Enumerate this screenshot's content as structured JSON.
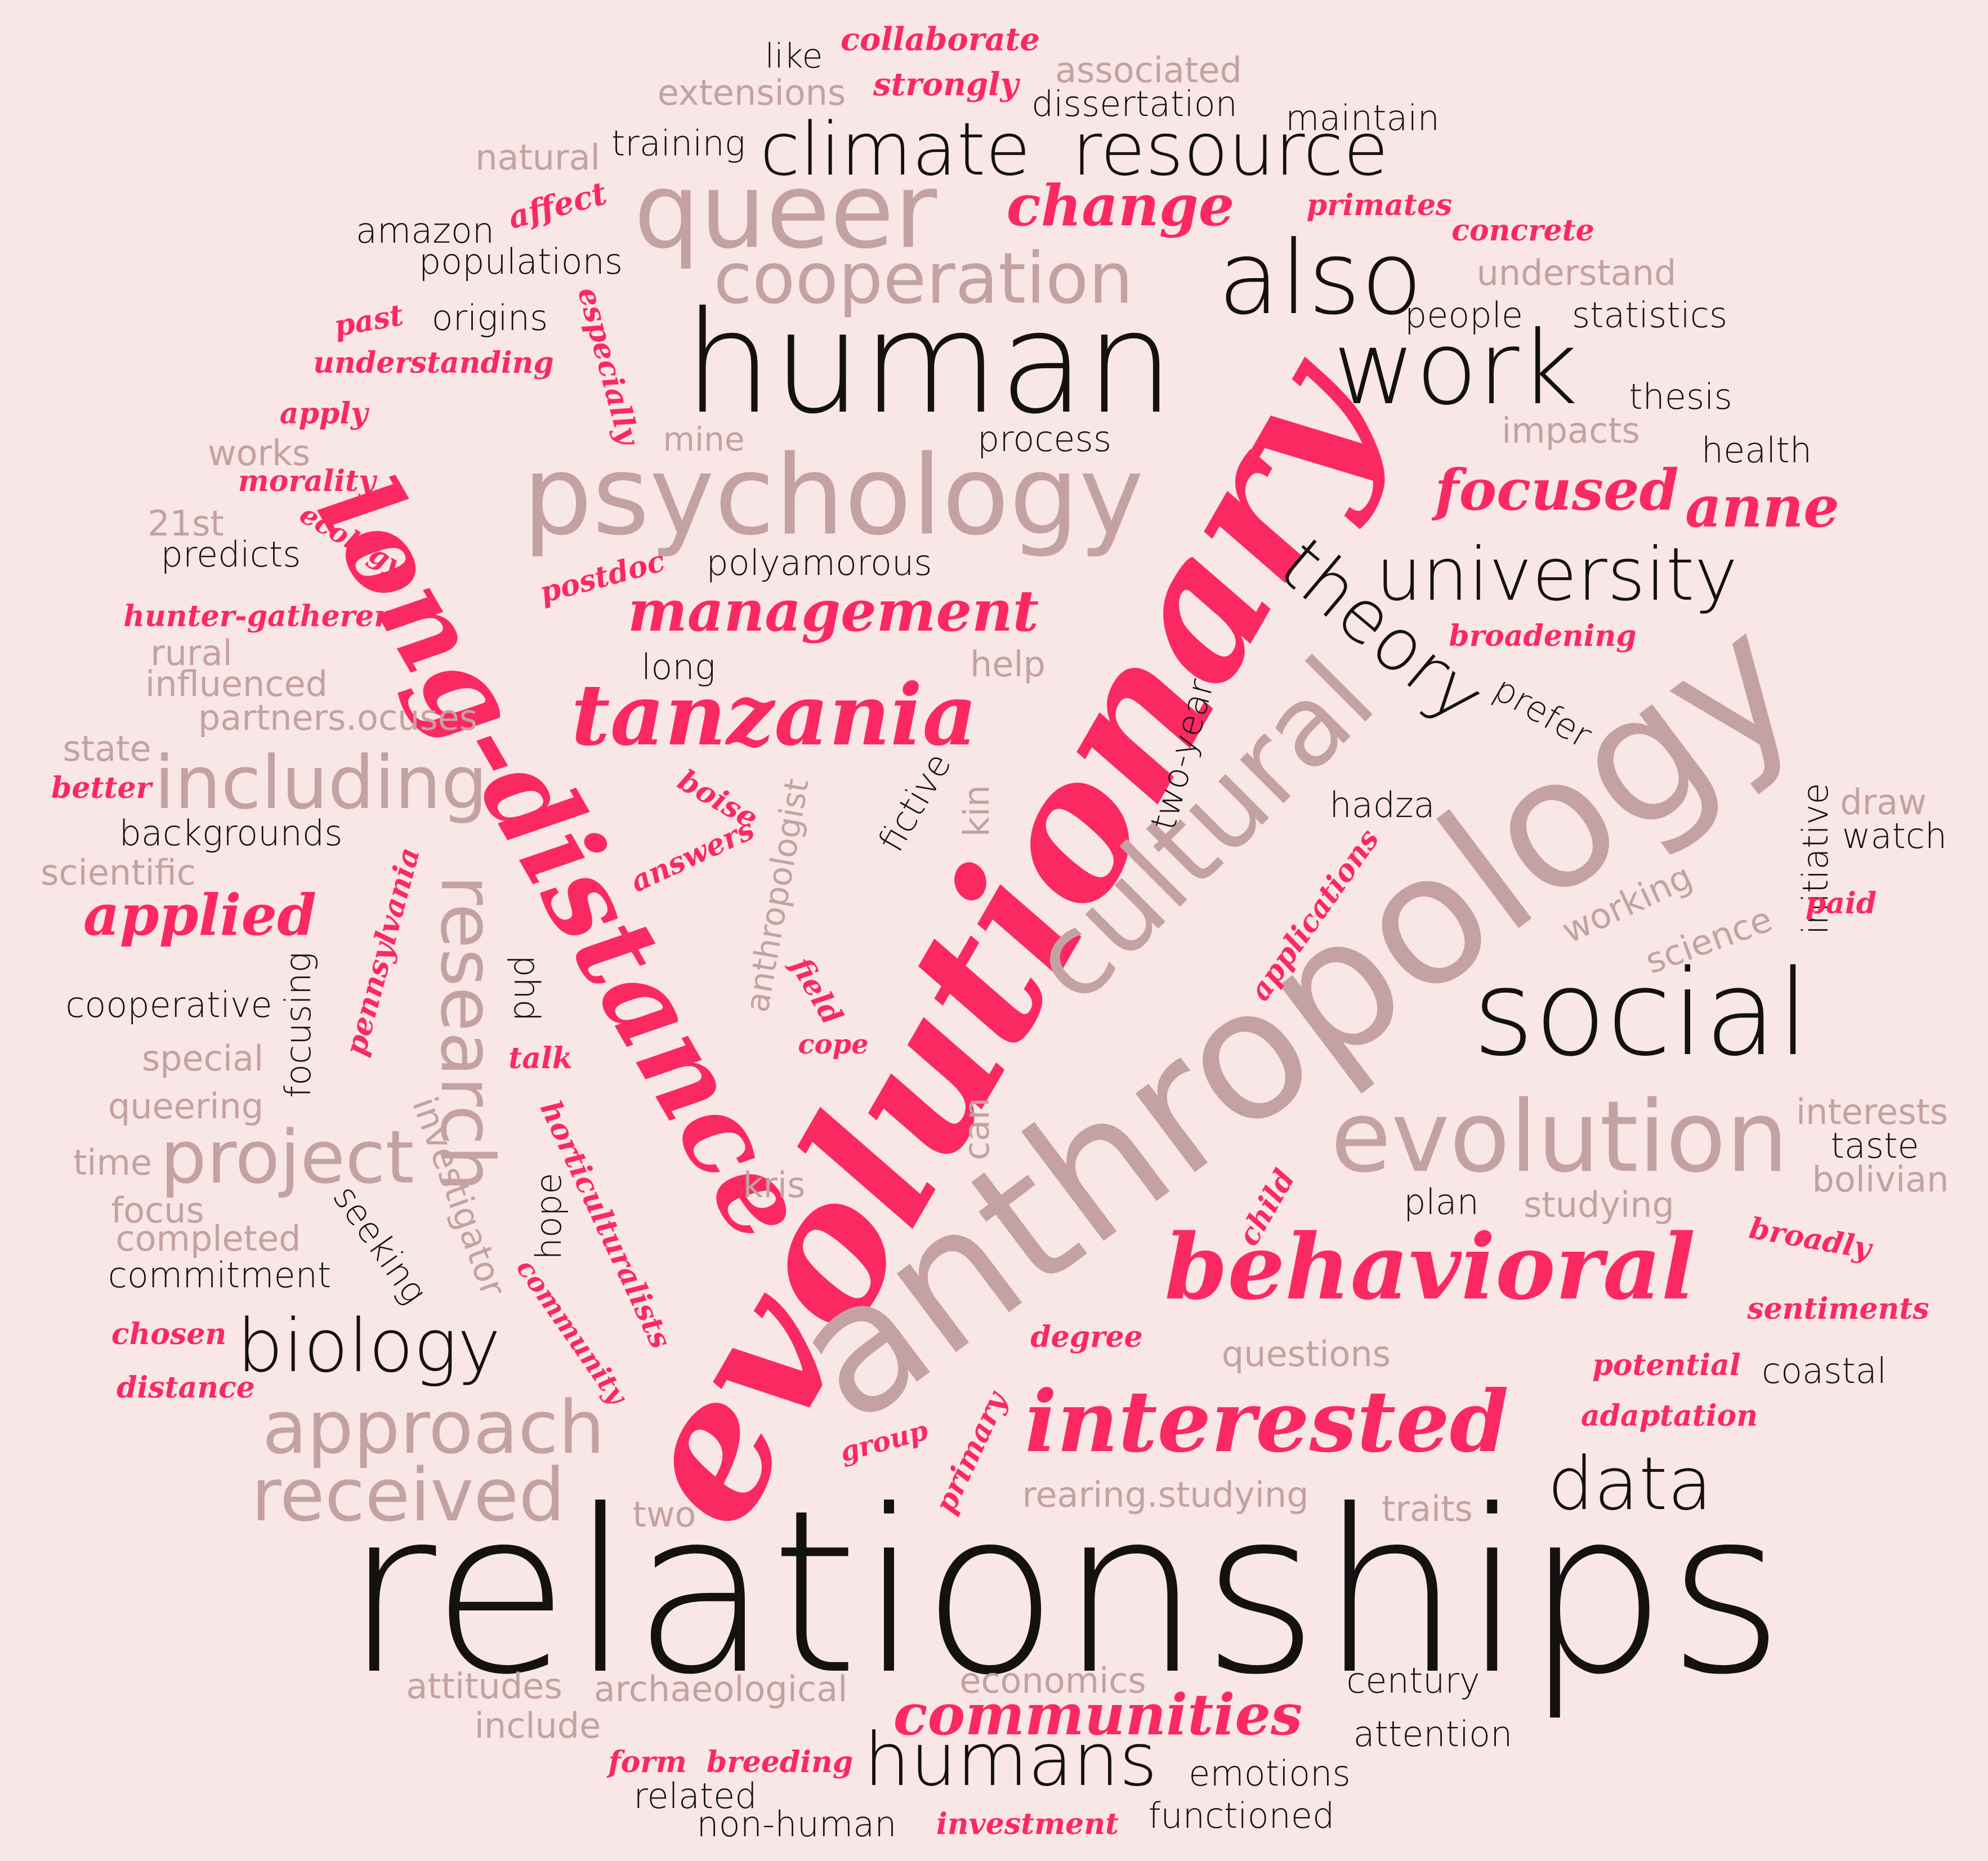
{
  "colors": {
    "background": "#f9e6e6",
    "dark": "#141111",
    "muted": "#c4a2a2",
    "accent": "#fb2961"
  },
  "words": {
    "relationships": "relationships",
    "evolutionary": "evolutionary",
    "anthropology": "anthropology",
    "human": "human",
    "long_distance": "long-distance",
    "social": "social",
    "cultural": "cultural",
    "psychology": "psychology",
    "queer": "queer",
    "climate": "climate",
    "resource": "resource",
    "also": "also",
    "work": "work",
    "cooperation": "cooperation",
    "tanzania": "tanzania",
    "evolution": "evolution",
    "behavioral": "behavioral",
    "interested": "interested",
    "university": "university",
    "theory": "theory",
    "research": "research",
    "including": "including",
    "project": "project",
    "biology": "biology",
    "approach": "approach",
    "received": "received",
    "data": "data",
    "humans": "humans",
    "communities": "communities",
    "management": "management",
    "applied": "applied",
    "focused": "focused",
    "anne": "anne",
    "change": "change",
    "collaborate": "collaborate",
    "like": "like",
    "strongly": "strongly",
    "associated": "associated",
    "extensions": "extensions",
    "dissertation": "dissertation",
    "maintain": "maintain",
    "natural": "natural",
    "training": "training",
    "affect": "affect",
    "primates": "primates",
    "amazon": "amazon",
    "concrete": "concrete",
    "populations": "populations",
    "understand": "understand",
    "especially": "especially",
    "past": "past",
    "origins": "origins",
    "people": "people",
    "statistics": "statistics",
    "understanding": "understanding",
    "apply": "apply",
    "thesis": "thesis",
    "mine": "mine",
    "process": "process",
    "impacts": "impacts",
    "works": "works",
    "health": "health",
    "morality": "morality",
    "ecology": "ecology",
    "21st": "21st",
    "predicts": "predicts",
    "postdoc": "postdoc",
    "polyamorous": "polyamorous",
    "hunter_gatherers": "hunter-gatherers",
    "broadening": "broadening",
    "rural": "rural",
    "help": "help",
    "long": "long",
    "influenced": "influenced",
    "partners": "partners.ocuses",
    "prefer": "prefer",
    "state": "state",
    "two_year": "two-year",
    "better": "better",
    "boise": "boise",
    "fictive": "fictive",
    "kin": "kin",
    "anthropologist": "anthropologist",
    "hadza": "hadza",
    "initiative": "initiative",
    "draw": "draw",
    "watch": "watch",
    "backgrounds": "backgrounds",
    "answers": "answers",
    "scientific": "scientific",
    "pennsylvania": "pennsylvania",
    "applications": "applications",
    "working": "working",
    "paid": "paid",
    "phd": "phd",
    "science": "science",
    "focusing": "focusing",
    "cooperative": "cooperative",
    "field": "field",
    "cope": "cope",
    "special": "special",
    "talk": "talk",
    "interests": "interests",
    "queering": "queering",
    "investigator": "investigator",
    "can": "can",
    "taste": "taste",
    "time": "time",
    "horticulturalists": "horticulturalists",
    "bolivian": "bolivian",
    "kris": "kris",
    "focus": "focus",
    "seeking": "seeking",
    "hope": "hope",
    "studying": "studying",
    "plan": "plan",
    "child": "child",
    "completed": "completed",
    "broadly": "broadly",
    "commitment": "commitment",
    "community": "community",
    "sentiments": "sentiments",
    "chosen": "chosen",
    "degree": "degree",
    "questions": "questions",
    "potential": "potential",
    "coastal": "coastal",
    "distance": "distance",
    "primary": "primary",
    "adaptation": "adaptation",
    "group": "group",
    "rearing_studying": "rearing.studying",
    "two": "two",
    "traits": "traits",
    "economics": "economics",
    "century": "century",
    "attitudes": "attitudes",
    "archaeological": "archaeological",
    "include": "include",
    "attention": "attention",
    "form": "form",
    "breeding": "breeding",
    "emotions": "emotions",
    "related": "related",
    "functioned": "functioned",
    "non_human": "non-human",
    "investment": "investment"
  }
}
